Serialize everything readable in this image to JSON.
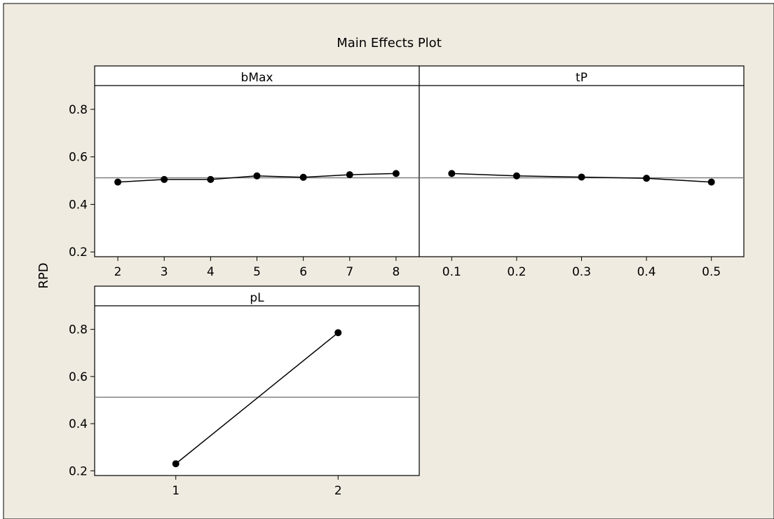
{
  "chart_data": {
    "type": "line",
    "title": "Main Effects Plot",
    "ylabel": "RPD",
    "ylim": [
      0.18,
      0.9
    ],
    "yticks": [
      "0.2",
      "0.4",
      "0.6",
      "0.8"
    ],
    "reference_line": 0.512,
    "colors": {
      "background": "#f0ebe1",
      "plot_area": "#ffffff",
      "line": "#000000",
      "reference_line": "#808080"
    },
    "panels": [
      {
        "name": "bMax",
        "x": [
          2,
          3,
          4,
          5,
          6,
          7,
          8
        ],
        "xticks": [
          "2",
          "3",
          "4",
          "5",
          "6",
          "7",
          "8"
        ],
        "xlim": [
          1.5,
          8.5
        ],
        "values": [
          0.494,
          0.505,
          0.505,
          0.52,
          0.514,
          0.525,
          0.53
        ]
      },
      {
        "name": "tP",
        "x": [
          0.1,
          0.2,
          0.3,
          0.4,
          0.5
        ],
        "xticks": [
          "0.1",
          "0.2",
          "0.3",
          "0.4",
          "0.5"
        ],
        "xlim": [
          0.05,
          0.55
        ],
        "values": [
          0.53,
          0.52,
          0.515,
          0.51,
          0.494
        ]
      },
      {
        "name": "pL",
        "x": [
          1,
          2
        ],
        "xticks": [
          "1",
          "2"
        ],
        "xlim": [
          0.5,
          2.5
        ],
        "values": [
          0.23,
          0.786
        ]
      }
    ]
  }
}
